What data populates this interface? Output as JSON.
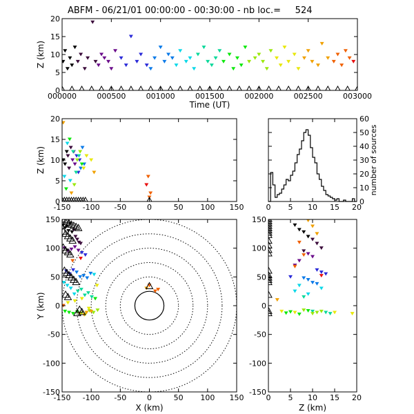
{
  "figure": {
    "title": "ABFM - 06/21/01 00:00:00 - 00:30:00 - nb loc.=     524"
  },
  "colors": {
    "axes": "#000000",
    "background": "#ffffff",
    "station": "#000000",
    "time_palette": [
      "#000000",
      "#3a0a3a",
      "#6a0a8a",
      "#2a2ad8",
      "#0a7ae8",
      "#0ad8e8",
      "#0ad89a",
      "#0ae80a",
      "#9ae80a",
      "#e8e80a",
      "#f0a000",
      "#f06000",
      "#e80a0a"
    ]
  },
  "chart_data": [
    {
      "id": "time_height",
      "type": "scatter",
      "title": "",
      "xlabel": "Time (UT)",
      "ylabel": "Z (km)",
      "xlim": [
        0,
        3000
      ],
      "ylim": [
        0,
        20
      ],
      "x_ticks": [
        "000000",
        "000500",
        "001000",
        "001500",
        "002000",
        "002500",
        "003000"
      ],
      "x_tick_values": [
        0,
        500,
        1000,
        1500,
        2000,
        2500,
        3000
      ],
      "y_ticks": [
        0,
        5,
        10,
        15,
        20
      ],
      "series": [
        {
          "marker": "colored-dot",
          "colored_by": "time",
          "x": [
            10,
            30,
            55,
            80,
            100,
            130,
            160,
            190,
            230,
            260,
            310,
            340,
            370,
            400,
            430,
            470,
            500,
            540,
            600,
            650,
            700,
            760,
            800,
            860,
            900,
            940,
            1000,
            1040,
            1080,
            1120,
            1160,
            1200,
            1260,
            1300,
            1340,
            1380,
            1440,
            1480,
            1520,
            1560,
            1600,
            1640,
            1700,
            1740,
            1780,
            1820,
            1860,
            1900,
            1960,
            2000,
            2040,
            2080,
            2120,
            2180,
            2220,
            2260,
            2300,
            2360,
            2400,
            2460,
            2500,
            2540,
            2600,
            2640,
            2700,
            2760,
            2800,
            2840,
            2880,
            2920,
            2960
          ],
          "y": [
            8,
            11,
            6,
            9,
            7,
            12,
            8,
            10,
            6,
            9,
            19,
            8,
            7,
            10,
            9,
            8,
            6,
            11,
            9,
            7,
            15,
            8,
            10,
            7,
            6,
            9,
            12,
            8,
            10,
            9,
            7,
            11,
            8,
            9,
            6,
            10,
            12,
            8,
            7,
            9,
            11,
            8,
            10,
            6,
            9,
            7,
            12,
            8,
            9,
            10,
            8,
            6,
            11,
            9,
            7,
            12,
            8,
            10,
            6,
            9,
            11,
            8,
            7,
            13,
            9,
            8,
            10,
            7,
            11,
            9,
            8
          ]
        },
        {
          "marker": "station-triangle",
          "label": "",
          "x": [
            0,
            100,
            200,
            300,
            400,
            500,
            600,
            700,
            800,
            900,
            1000,
            1100,
            1200,
            1300,
            1400,
            1500,
            1600,
            1700,
            1800,
            1900,
            2000,
            2100,
            2200,
            2300,
            2400,
            2500,
            2600,
            2700,
            2800,
            2900,
            3000
          ],
          "y": [
            0,
            0,
            0,
            0,
            0,
            0,
            0,
            0,
            0,
            0,
            0,
            0,
            0,
            0,
            0,
            0,
            0,
            0,
            0,
            0,
            0,
            0,
            0,
            0,
            0,
            0,
            0,
            0,
            0,
            0,
            0
          ]
        }
      ]
    },
    {
      "id": "x_height",
      "type": "scatter",
      "title": "",
      "xlabel": "",
      "ylabel": "Z (km)",
      "xlim": [
        -150,
        150
      ],
      "ylim": [
        0,
        20
      ],
      "x_ticks": [
        -150,
        -100,
        -50,
        0,
        50,
        100,
        150
      ],
      "y_ticks": [
        0,
        5,
        10,
        15,
        20
      ],
      "series": [
        {
          "marker": "colored-dot",
          "colored_by": "time",
          "x": [
            -148,
            -145,
            -142,
            -140,
            -138,
            -135,
            -132,
            -130,
            -128,
            -125,
            -122,
            -120,
            -118,
            -115,
            -112,
            -146,
            -141,
            -136,
            -131,
            -126,
            -121,
            -116,
            -143,
            -137,
            -129,
            -124,
            -119,
            -113,
            -108,
            -100,
            -148,
            -134,
            -95,
            -2,
            0,
            2,
            -5
          ],
          "y": [
            10,
            9,
            12,
            11,
            8,
            13,
            10,
            12,
            9,
            11,
            7,
            10,
            8,
            13,
            9,
            6,
            14,
            5,
            12,
            7,
            11,
            9,
            3,
            15,
            4,
            10,
            12,
            8,
            11,
            10,
            19,
            2,
            7,
            6,
            1,
            2,
            4
          ]
        },
        {
          "marker": "station-triangle",
          "x": [
            -150,
            -146,
            -142,
            -138,
            -134,
            -130,
            -126,
            -122,
            -118,
            -114,
            -110,
            0
          ],
          "y": [
            0,
            0,
            0,
            0,
            0,
            0,
            0,
            0,
            0,
            0,
            0,
            0
          ]
        }
      ]
    },
    {
      "id": "height_histogram",
      "type": "bar",
      "title": "",
      "xlabel": "",
      "ylabel": "number of sources",
      "xlim": [
        0,
        20
      ],
      "ylim": [
        0,
        60
      ],
      "x_ticks": [
        0,
        5,
        10,
        15,
        20
      ],
      "y_ticks": [
        0,
        10,
        20,
        30,
        40,
        50,
        60
      ],
      "bin_width": 0.5,
      "bin_starts": [
        0,
        0.5,
        1,
        1.5,
        2,
        2.5,
        3,
        3.5,
        4,
        4.5,
        5,
        5.5,
        6,
        6.5,
        7,
        7.5,
        8,
        8.5,
        9,
        9.5,
        10,
        10.5,
        11,
        11.5,
        12,
        12.5,
        13,
        13.5,
        14,
        14.5,
        15,
        15.5,
        16,
        16.5,
        17,
        17.5,
        18,
        18.5,
        19,
        19.5
      ],
      "values": [
        0,
        21,
        12,
        3,
        5,
        6,
        9,
        12,
        16,
        15,
        19,
        22,
        28,
        34,
        38,
        44,
        50,
        52,
        48,
        39,
        32,
        28,
        20,
        16,
        11,
        8,
        5,
        4,
        3,
        2,
        1,
        2,
        0,
        0,
        1,
        0,
        0,
        0,
        2,
        0
      ]
    },
    {
      "id": "plan_view",
      "type": "scatter",
      "title": "",
      "xlabel": "X (km)",
      "ylabel": "Y (km)",
      "xlim": [
        -150,
        150
      ],
      "ylim": [
        -150,
        150
      ],
      "x_ticks": [
        -150,
        -100,
        -50,
        0,
        50,
        100,
        150
      ],
      "y_ticks": [
        -150,
        -100,
        -50,
        0,
        50,
        100,
        150
      ],
      "range_rings_km": [
        25,
        50,
        75,
        100,
        125,
        150
      ],
      "series": [
        {
          "marker": "colored-dot",
          "colored_by": "time",
          "x": [
            -148,
            -145,
            -142,
            -139,
            -136,
            -133,
            -130,
            -127,
            -124,
            -121,
            -118,
            -146,
            -140,
            -134,
            -128,
            -122,
            -116,
            -110,
            -143,
            -137,
            -131,
            -125,
            -119,
            -113,
            -107,
            -101,
            -95,
            -147,
            -141,
            -135,
            -129,
            -123,
            -117,
            -111,
            -105,
            -99,
            -93,
            -145,
            -138,
            -131,
            -124,
            -117,
            -110,
            -103,
            -96,
            -89,
            -140,
            -128,
            -116,
            -104,
            -90,
            -120,
            -112,
            -108,
            -100,
            -5,
            0,
            10,
            15,
            -148,
            -132,
            -118
          ],
          "y": [
            140,
            135,
            138,
            130,
            142,
            128,
            132,
            120,
            115,
            110,
            108,
            100,
            95,
            98,
            102,
            96,
            92,
            88,
            60,
            55,
            62,
            58,
            50,
            52,
            48,
            56,
            54,
            40,
            35,
            30,
            20,
            25,
            28,
            18,
            22,
            15,
            12,
            -10,
            -12,
            -14,
            -11,
            -13,
            -15,
            -9,
            -12,
            -8,
            5,
            8,
            12,
            -5,
            35,
            -14,
            -16,
            -12,
            -10,
            30,
            35,
            25,
            28,
            0,
            78,
            82
          ]
        },
        {
          "marker": "station-triangle",
          "x": [
            -150,
            -146,
            -142,
            -138,
            -134,
            -130,
            -126,
            -122,
            -148,
            -144,
            -140,
            -136,
            -132,
            -148,
            -144,
            -140,
            -136,
            -146,
            -142,
            -138,
            -134,
            -130,
            -126,
            -144,
            -140,
            -120,
            -116,
            -124,
            0
          ],
          "y": [
            150,
            148,
            146,
            142,
            140,
            138,
            136,
            134,
            128,
            124,
            120,
            116,
            112,
            100,
            95,
            92,
            88,
            60,
            56,
            52,
            48,
            44,
            40,
            18,
            14,
            -8,
            -12,
            -14,
            33
          ]
        }
      ]
    },
    {
      "id": "height_y",
      "type": "scatter",
      "title": "",
      "xlabel": "Z (km)",
      "ylabel": "",
      "xlim": [
        0,
        20
      ],
      "ylim": [
        -150,
        150
      ],
      "x_ticks": [
        0,
        5,
        10,
        15,
        20
      ],
      "y_ticks": [
        -150,
        -100,
        -50,
        0,
        50,
        100,
        150
      ],
      "series": [
        {
          "marker": "colored-dot",
          "colored_by": "time",
          "x": [
            6,
            7,
            8,
            9,
            10,
            11,
            12,
            8,
            9,
            10,
            7,
            6,
            11,
            12,
            13,
            5,
            8,
            9,
            10,
            11,
            7,
            12,
            6,
            9,
            8,
            10,
            13,
            14,
            5,
            4,
            7,
            9,
            11,
            8,
            10,
            12,
            6,
            3,
            15,
            19,
            2,
            9,
            10,
            11,
            7,
            8,
            6,
            12
          ],
          "y": [
            140,
            132,
            128,
            120,
            115,
            108,
            100,
            95,
            90,
            85,
            78,
            70,
            62,
            58,
            55,
            50,
            48,
            45,
            40,
            38,
            35,
            30,
            25,
            20,
            15,
            -10,
            -12,
            -14,
            -11,
            -13,
            -15,
            -9,
            -12,
            -8,
            -14,
            -10,
            -12,
            -10,
            -12,
            -14,
            10,
            148,
            138,
            125,
            110,
            88,
            68,
            52
          ]
        },
        {
          "marker": "station-triangle",
          "x": [
            0,
            0,
            0,
            0,
            0,
            0,
            0,
            0,
            0,
            0,
            0,
            0,
            0,
            0,
            0,
            0,
            0,
            0,
            0,
            0
          ],
          "y": [
            150,
            146,
            142,
            138,
            134,
            130,
            126,
            122,
            112,
            104,
            96,
            90,
            60,
            52,
            48,
            44,
            40,
            18,
            -10,
            -14
          ]
        }
      ]
    }
  ]
}
